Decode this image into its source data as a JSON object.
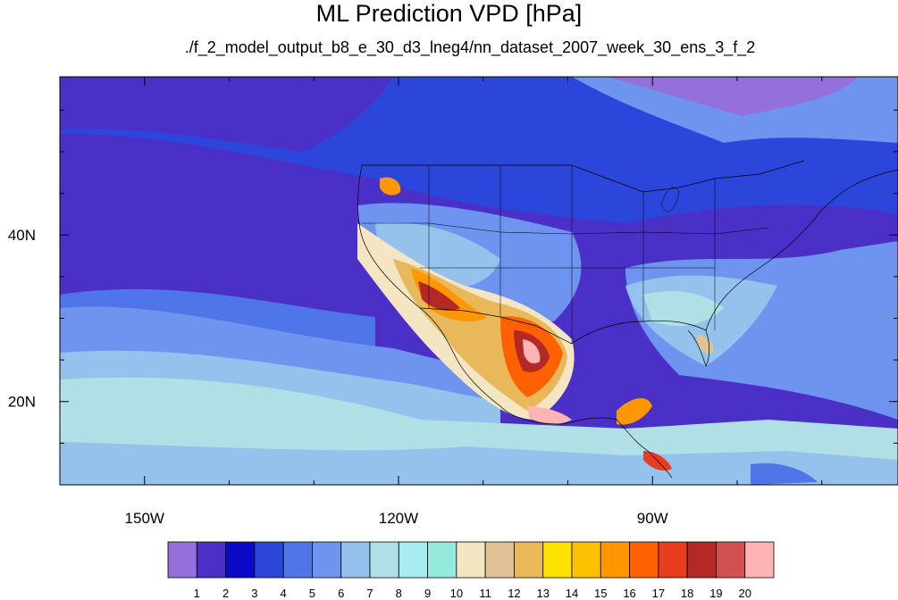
{
  "title": "ML Prediction VPD [hPa]",
  "subtitle": "./f_2_model_output_b8_e_30_d3_lneg4/nn_dataset_2007_week_30_ens_3_f_2",
  "map": {
    "lon_range": [
      -160,
      -61
    ],
    "lat_range": [
      10,
      59
    ],
    "lon_ticks": [
      {
        "value": -150,
        "label": "150W"
      },
      {
        "value": -120,
        "label": "120W"
      },
      {
        "value": -90,
        "label": "90W"
      }
    ],
    "lat_ticks": [
      {
        "value": 40,
        "label": "40N"
      },
      {
        "value": 20,
        "label": "20N"
      }
    ]
  },
  "colorbar": {
    "colors": [
      "#9370db",
      "#4b30c8",
      "#0a0ac8",
      "#2c46dc",
      "#4e76e8",
      "#6e94f0",
      "#94c2ec",
      "#b0e0e6",
      "#a6ecf2",
      "#94eadc",
      "#f5e6c3",
      "#e0c296",
      "#e8b85a",
      "#ffe100",
      "#ffc000",
      "#ff9800",
      "#ff6000",
      "#e83c1e",
      "#b42828",
      "#d25050",
      "#ffb4b4"
    ],
    "labels": [
      "1",
      "2",
      "3",
      "4",
      "5",
      "6",
      "7",
      "8",
      "9",
      "10",
      "11",
      "12",
      "13",
      "14",
      "15",
      "16",
      "17",
      "18",
      "19",
      "20"
    ]
  }
}
